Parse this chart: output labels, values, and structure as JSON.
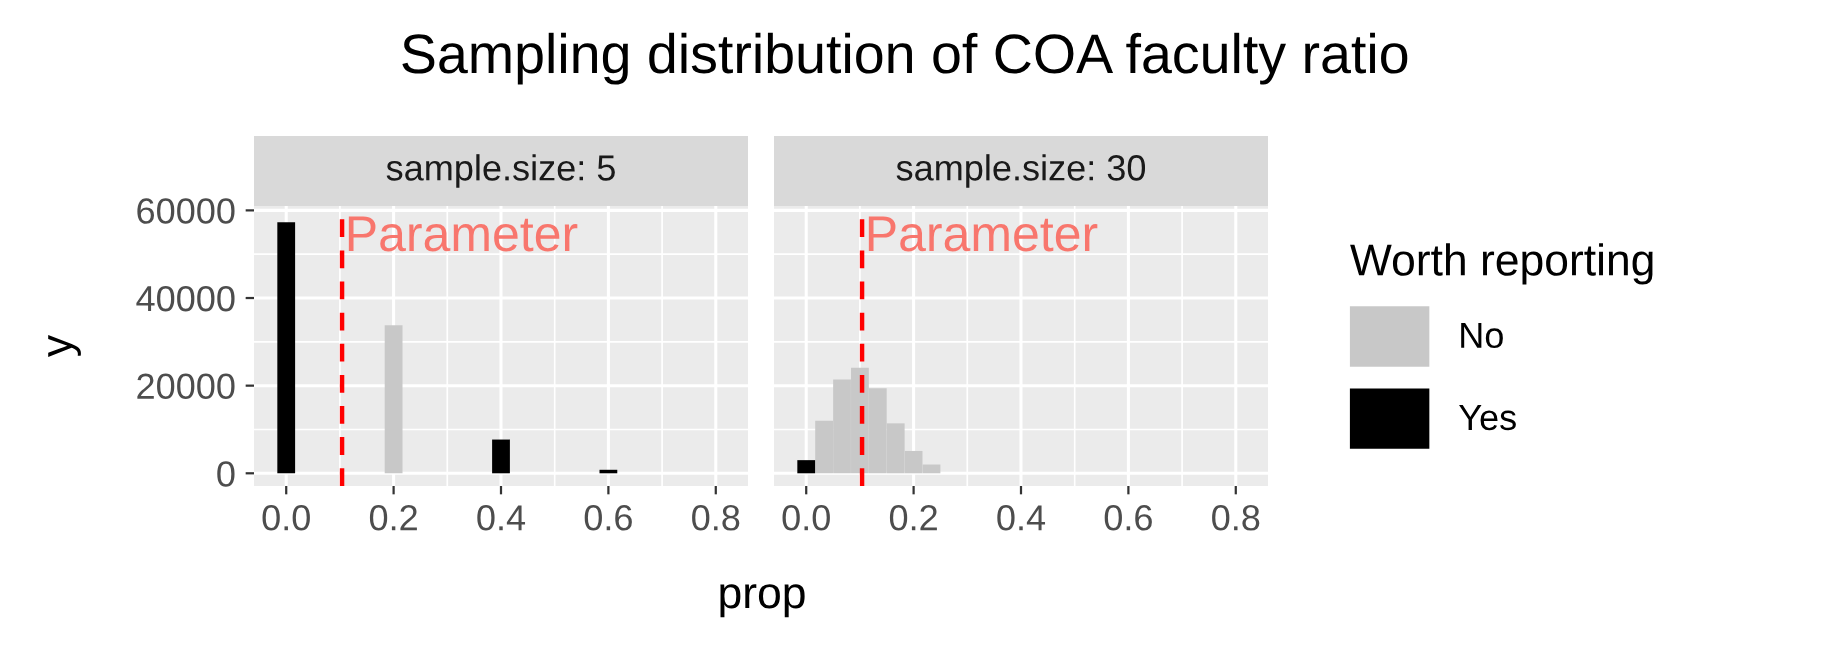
{
  "chart_data": [
    {
      "type": "bar",
      "title": "Sampling distribution of COA faculty ratio",
      "subtitle": "sample.size: 5",
      "xlabel": "prop",
      "ylabel": "y",
      "series": [
        {
          "color": "#c8c8c8",
          "x": [
            0.2
          ],
          "values": [
            33800
          ]
        },
        {
          "color": "#000000",
          "x": [
            0,
            0.4,
            0.6
          ],
          "values": [
            57300,
            7700,
            800
          ]
        }
      ],
      "xlim": [
        -0.06,
        0.86
      ],
      "ylim": [
        -2900,
        61000
      ],
      "xticks": [
        {
          "value": 0,
          "label": "0.0"
        },
        {
          "value": 0.2,
          "label": "0.2"
        },
        {
          "value": 0.4,
          "label": "0.4"
        },
        {
          "value": 0.6,
          "label": "0.6"
        },
        {
          "value": 0.8,
          "label": "0.8"
        }
      ],
      "yticks": [
        0,
        20000,
        40000,
        60000
      ],
      "grid": true,
      "ref_lines": [
        {
          "axis": "x",
          "value": 0.104,
          "label": "Parameter",
          "color": "#ff0000",
          "line_style": "dashed"
        }
      ]
    },
    {
      "type": "bar",
      "subtitle": "sample.size: 30",
      "legend_title": "Worth reporting",
      "legend": "right",
      "tick_labels": "x",
      "series": [
        {
          "name": "No",
          "color": "#c8c8c8",
          "x": [
            0.0333,
            0.0667,
            0.1,
            0.1333,
            0.1667,
            0.2,
            0.2333
          ],
          "values": [
            12000,
            21400,
            24100,
            19400,
            11400,
            5100,
            2000
          ]
        },
        {
          "name": "Yes",
          "color": "#000000",
          "x": [
            0
          ],
          "values": [
            3000
          ]
        }
      ],
      "xlim": [
        -0.06,
        0.86
      ],
      "ylim": [
        -2900,
        61000
      ],
      "xticks": [
        {
          "value": 0,
          "label": "0.0"
        },
        {
          "value": 0.2,
          "label": "0.2"
        },
        {
          "value": 0.4,
          "label": "0.4"
        },
        {
          "value": 0.6,
          "label": "0.6"
        },
        {
          "value": 0.8,
          "label": "0.8"
        }
      ],
      "yticks": [
        0,
        20000,
        40000,
        60000
      ],
      "grid": true,
      "ref_lines": [
        {
          "axis": "x",
          "value": 0.104,
          "label": "Parameter",
          "color": "#ff0000",
          "line_style": "dashed"
        }
      ]
    }
  ]
}
